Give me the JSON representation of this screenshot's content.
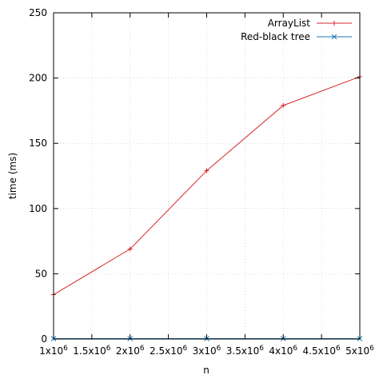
{
  "chart_data": {
    "type": "line",
    "xlabel": "n",
    "ylabel": "time (ms)",
    "xlim": [
      1000000,
      5000000
    ],
    "ylim": [
      0,
      250
    ],
    "x_ticks": [
      {
        "value": 1000000,
        "base": "1x10",
        "exp": "6"
      },
      {
        "value": 1500000,
        "base": "1.5x10",
        "exp": "6"
      },
      {
        "value": 2000000,
        "base": "2x10",
        "exp": "6"
      },
      {
        "value": 2500000,
        "base": "2.5x10",
        "exp": "6"
      },
      {
        "value": 3000000,
        "base": "3x10",
        "exp": "6"
      },
      {
        "value": 3500000,
        "base": "3.5x10",
        "exp": "6"
      },
      {
        "value": 4000000,
        "base": "4x10",
        "exp": "6"
      },
      {
        "value": 4500000,
        "base": "4.5x10",
        "exp": "6"
      },
      {
        "value": 5000000,
        "base": "5x10",
        "exp": "6"
      }
    ],
    "y_ticks": [
      0,
      50,
      100,
      150,
      200,
      250
    ],
    "grid": true,
    "legend_position": "top-right",
    "x": [
      1000000,
      2000000,
      3000000,
      4000000,
      5000000
    ],
    "series": [
      {
        "name": "ArrayList",
        "color": "#d62728",
        "marker": "plus",
        "values": [
          34,
          69,
          129,
          179,
          201
        ]
      },
      {
        "name": "Red-black tree",
        "color": "#1f77b4",
        "marker": "cross",
        "values": [
          0.3,
          0.3,
          0.3,
          0.3,
          0.3
        ]
      }
    ]
  }
}
